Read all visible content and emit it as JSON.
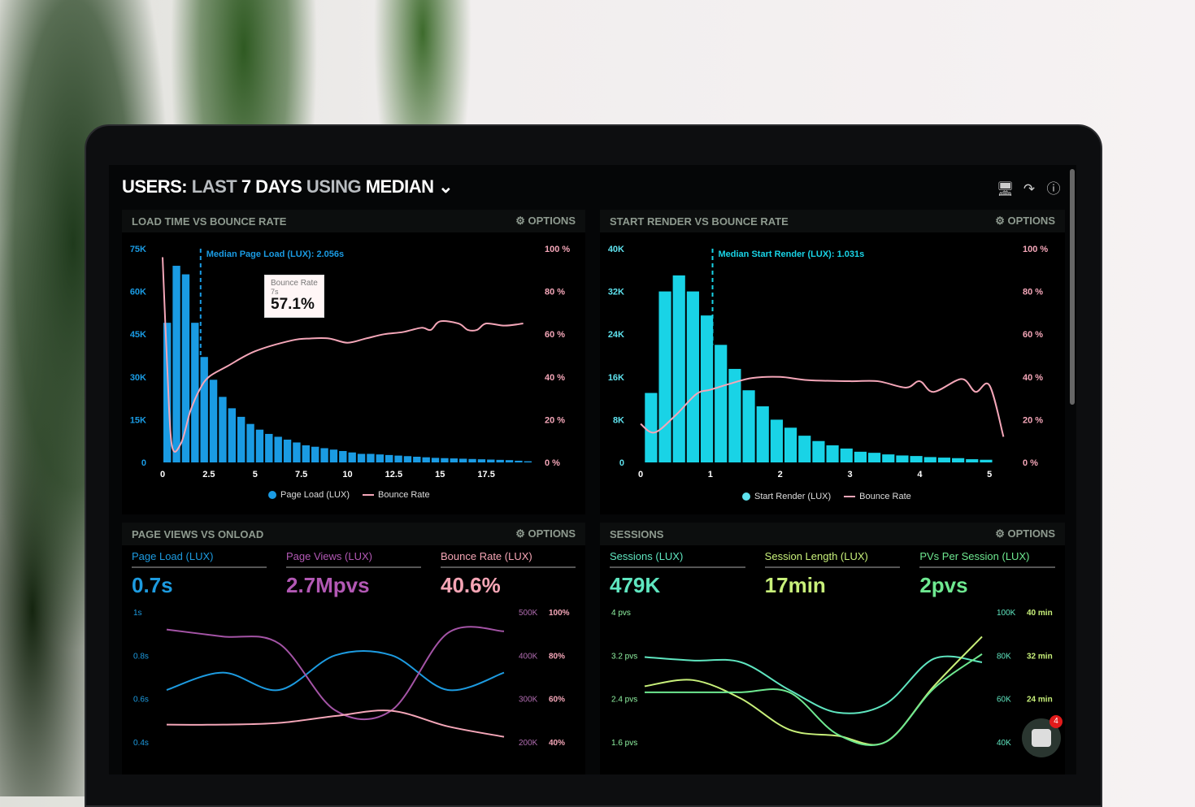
{
  "header": {
    "title_parts": [
      "USERS:",
      "LAST",
      "7 DAYS",
      "USING",
      "MEDIAN"
    ],
    "icons": [
      "monitor-icon",
      "share-icon",
      "help-icon"
    ]
  },
  "panels": {
    "load_time": {
      "title": "LOAD TIME VS BOUNCE RATE",
      "options": "OPTIONS",
      "median_label": "Median Page Load (LUX): 2.056s",
      "tooltip": {
        "title": "Bounce Rate",
        "sub": "7s",
        "value": "57.1%"
      },
      "legend": [
        "Page Load (LUX)",
        "Bounce Rate"
      ]
    },
    "start_render": {
      "title": "START RENDER VS BOUNCE RATE",
      "options": "OPTIONS",
      "median_label": "Median Start Render (LUX): 1.031s",
      "legend": [
        "Start Render (LUX)",
        "Bounce Rate"
      ]
    },
    "page_views": {
      "title": "PAGE VIEWS VS ONLOAD",
      "options": "OPTIONS",
      "kpis": [
        {
          "label": "Page Load (LUX)",
          "value": "0.7s",
          "color": "#1d9be0"
        },
        {
          "label": "Page Views (LUX)",
          "value": "2.7Mpvs",
          "color": "#b258b4"
        },
        {
          "label": "Bounce Rate (LUX)",
          "value": "40.6%",
          "color": "#f5a5b5"
        }
      ]
    },
    "sessions": {
      "title": "SESSIONS",
      "options": "OPTIONS",
      "kpis": [
        {
          "label": "Sessions (LUX)",
          "value": "479K",
          "color": "#5fe6c0"
        },
        {
          "label": "Session Length (LUX)",
          "value": "17min",
          "color": "#c8f07a"
        },
        {
          "label": "PVs Per Session (LUX)",
          "value": "2pvs",
          "color": "#6ee890"
        }
      ]
    }
  },
  "chat": {
    "badge": "4"
  },
  "colors": {
    "page_load": "#1a9be3",
    "start_render": "#19d3e6",
    "bounce": "#f4a6b8",
    "page_views": "#a454a6"
  },
  "chart_data": [
    {
      "type": "bar",
      "title": "LOAD TIME VS BOUNCE RATE",
      "xlim": [
        0,
        20
      ],
      "xticks": [
        "0",
        "2.5",
        "5",
        "7.5",
        "10",
        "12.5",
        "15",
        "17.5"
      ],
      "ylim": [
        0,
        75000
      ],
      "yticks": [
        "0",
        "15K",
        "30K",
        "45K",
        "60K",
        "75K"
      ],
      "y2lim": [
        0,
        100
      ],
      "y2ticks": [
        "0 %",
        "20 %",
        "40 %",
        "60 %",
        "80 %",
        "100 %"
      ],
      "median": 2.056,
      "bin_width": 0.5,
      "series": [
        {
          "name": "Page Load (LUX)",
          "type": "bar",
          "values": [
            49000,
            69000,
            66000,
            49000,
            37000,
            29000,
            23000,
            19000,
            16000,
            13500,
            11500,
            10000,
            9000,
            8000,
            7000,
            6000,
            5500,
            5000,
            4500,
            4000,
            3500,
            3000,
            3000,
            2800,
            2600,
            2400,
            2200,
            2000,
            1800,
            1600,
            1500,
            1400,
            1300,
            1200,
            1100,
            1000,
            900,
            800,
            600,
            400
          ]
        },
        {
          "name": "Bounce Rate",
          "type": "line",
          "points": [
            [
              0,
              96
            ],
            [
              0.25,
              45
            ],
            [
              0.5,
              8
            ],
            [
              1,
              9
            ],
            [
              1.5,
              24
            ],
            [
              2,
              34
            ],
            [
              2.5,
              40
            ],
            [
              3.5,
              45
            ],
            [
              5,
              52
            ],
            [
              7,
              57.1
            ],
            [
              8,
              58
            ],
            [
              9,
              58
            ],
            [
              10,
              56
            ],
            [
              11,
              58
            ],
            [
              12,
              60
            ],
            [
              13,
              61
            ],
            [
              14,
              63
            ],
            [
              14.5,
              62
            ],
            [
              15,
              66
            ],
            [
              16,
              65
            ],
            [
              16.5,
              62
            ],
            [
              17,
              62
            ],
            [
              17.5,
              65
            ],
            [
              18.5,
              64
            ],
            [
              19.5,
              65
            ]
          ]
        }
      ]
    },
    {
      "type": "bar",
      "title": "START RENDER VS BOUNCE RATE",
      "xlim": [
        0,
        5.3
      ],
      "xticks": [
        "0",
        "1",
        "2",
        "3",
        "4",
        "5"
      ],
      "ylim": [
        0,
        40000
      ],
      "yticks": [
        "0",
        "8K",
        "16K",
        "24K",
        "32K",
        "40K"
      ],
      "y2lim": [
        0,
        100
      ],
      "y2ticks": [
        "0 %",
        "20 %",
        "40 %",
        "60 %",
        "80 %",
        "100 %"
      ],
      "median": 1.031,
      "bin_width": 0.2,
      "series": [
        {
          "name": "Start Render (LUX)",
          "type": "bar",
          "values": [
            13000,
            32000,
            35000,
            32000,
            27500,
            22000,
            17500,
            13500,
            10500,
            8000,
            6500,
            5000,
            4000,
            3200,
            2600,
            2000,
            1800,
            1500,
            1300,
            1200,
            1000,
            900,
            800,
            600,
            500
          ]
        },
        {
          "name": "Bounce Rate",
          "type": "line",
          "points": [
            [
              0,
              18
            ],
            [
              0.2,
              14
            ],
            [
              0.5,
              22
            ],
            [
              0.8,
              32
            ],
            [
              1,
              34
            ],
            [
              1.3,
              37
            ],
            [
              1.6,
              39.5
            ],
            [
              2,
              40
            ],
            [
              2.4,
              38.5
            ],
            [
              3,
              38
            ],
            [
              3.4,
              38
            ],
            [
              3.8,
              35
            ],
            [
              4,
              38
            ],
            [
              4.2,
              33
            ],
            [
              4.6,
              39
            ],
            [
              4.8,
              33
            ],
            [
              5,
              36
            ],
            [
              5.2,
              12
            ]
          ]
        }
      ]
    },
    {
      "type": "line",
      "title": "PAGE VIEWS VS ONLOAD",
      "yticks": [
        "1s",
        "0.8s",
        "0.6s",
        "0.4s"
      ],
      "ylim": [
        0.3,
        1
      ],
      "y2ticks": [
        "500K",
        "400K",
        "300K",
        "200K"
      ],
      "y3ticks": [
        "100%",
        "80%",
        "60%",
        "40%"
      ],
      "series": [
        {
          "name": "Page Load (LUX)",
          "axis": "s",
          "points": [
            [
              0,
              0.6
            ],
            [
              1,
              0.7
            ],
            [
              2,
              0.6
            ],
            [
              3,
              0.8
            ],
            [
              4,
              0.8
            ],
            [
              5,
              0.6
            ],
            [
              6,
              0.7
            ]
          ]
        },
        {
          "name": "Page Views (LUX)",
          "axis": "K",
          "points": [
            [
              0,
              470
            ],
            [
              1,
              450
            ],
            [
              2,
              430
            ],
            [
              3,
              240
            ],
            [
              4,
              240
            ],
            [
              5,
              460
            ],
            [
              6,
              465
            ]
          ]
        },
        {
          "name": "Bounce Rate (LUX)",
          "axis": "%",
          "points": [
            [
              0,
              40
            ],
            [
              1,
              40
            ],
            [
              2,
              41
            ],
            [
              3,
              45
            ],
            [
              4,
              48
            ],
            [
              5,
              39
            ],
            [
              6,
              33
            ]
          ]
        }
      ]
    },
    {
      "type": "line",
      "title": "SESSIONS",
      "yticks": [
        "4 pvs",
        "3.2 pvs",
        "2.4 pvs",
        "1.6 pvs"
      ],
      "y2ticks": [
        "100K",
        "80K",
        "60K",
        "40K"
      ],
      "y3ticks": [
        "40 min",
        "32 min",
        "24 min"
      ],
      "series": [
        {
          "name": "Sessions (LUX)",
          "axis": "K",
          "points": [
            [
              0,
              79
            ],
            [
              1,
              77
            ],
            [
              2,
              76
            ],
            [
              3,
              60
            ],
            [
              4,
              47
            ],
            [
              5,
              52
            ],
            [
              6,
              78
            ],
            [
              7,
              76
            ]
          ]
        },
        {
          "name": "Session Length (LUX)",
          "axis": "min",
          "points": [
            [
              0,
              18
            ],
            [
              1,
              20
            ],
            [
              2,
              14
            ],
            [
              3,
              4
            ],
            [
              4,
              2
            ],
            [
              5,
              0
            ],
            [
              6,
              18
            ],
            [
              7,
              34
            ]
          ]
        },
        {
          "name": "PVs Per Session (LUX)",
          "axis": "pvs",
          "points": [
            [
              0,
              2.1
            ],
            [
              1,
              2.1
            ],
            [
              2,
              2.1
            ],
            [
              3,
              2.1
            ],
            [
              4,
              1.0
            ],
            [
              5,
              0.8
            ],
            [
              6,
              2.2
            ],
            [
              7,
              3.1
            ]
          ]
        }
      ]
    }
  ]
}
